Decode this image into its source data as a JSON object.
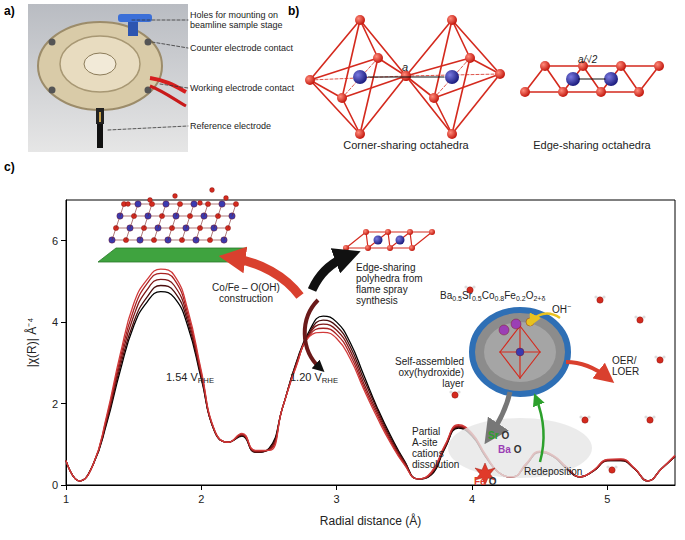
{
  "panels": {
    "a": {
      "label": "a)",
      "callouts": [
        [
          "Holes for mounting on",
          "beamline sample stage"
        ],
        [
          "Counter electrode contact"
        ],
        [
          "Working electrode contact"
        ],
        [
          "Reference electrode"
        ]
      ]
    },
    "b": {
      "label": "b)",
      "structures": [
        {
          "caption": "Corner-sharing octahedra",
          "distance": "a"
        },
        {
          "caption": "Edge-sharing octahedra",
          "distance": "a/√2"
        }
      ]
    },
    "c": {
      "label": "c)",
      "annotations": {
        "construction": [
          [
            "Co/Fe – O(OH)"
          ],
          [
            "construction"
          ]
        ],
        "potential_high": [
          [
            "1.54 V",
            {
              "sub": "RHE"
            }
          ]
        ],
        "potential_low": [
          [
            "1.20 V",
            {
              "sub": "RHE"
            }
          ]
        ],
        "synthesis": [
          [
            "Edge-sharing"
          ],
          [
            "polyhedra from"
          ],
          [
            "flame spray"
          ],
          [
            "synthesis"
          ]
        ],
        "formula": [
          [
            "Ba",
            {
              "sub": "0.5"
            },
            "Sr",
            {
              "sub": "0.5"
            },
            "Co",
            {
              "sub": "0.8"
            },
            "Fe",
            {
              "sub": "0.2"
            },
            "O",
            {
              "sub": "2+δ"
            }
          ]
        ],
        "hydroxide": [
          [
            "OH",
            {
              "sup": "−"
            }
          ]
        ],
        "layer": [
          [
            "Self-assembled"
          ],
          [
            "oxy(hydroxide)"
          ],
          [
            "layer"
          ]
        ],
        "reaction": [
          [
            "OER/"
          ],
          [
            "LOER"
          ]
        ],
        "dissolution": [
          [
            "Partial"
          ],
          [
            "A-site"
          ],
          [
            "cations"
          ],
          [
            "dissolution"
          ]
        ],
        "redeposition": [
          [
            "Redeposition"
          ]
        ]
      },
      "oxides": [
        {
          "cation": "Sr",
          "anion": "O",
          "color": "#2ca02c"
        },
        {
          "cation": "Ba",
          "anion": "O",
          "color": "#9b3fb5"
        },
        {
          "cation": "Fe",
          "anion": "O",
          "color": "#e03a2a"
        }
      ]
    }
  },
  "chart_data": {
    "type": "line",
    "x_label": "Radial distance (Å)",
    "y_label": "|χ(R)| Å⁻⁴",
    "xlim": [
      1,
      5.5
    ],
    "ylim": [
      0,
      7
    ],
    "xticks": [
      1,
      2,
      3,
      4,
      5
    ],
    "yticks": [
      0,
      2,
      4,
      6
    ],
    "grid": false,
    "x": [
      1.0,
      1.1,
      1.2,
      1.3,
      1.4,
      1.5,
      1.6,
      1.7,
      1.8,
      1.9,
      2.0,
      2.1,
      2.2,
      2.3,
      2.4,
      2.5,
      2.6,
      2.7,
      2.8,
      2.9,
      3.0,
      3.1,
      3.2,
      3.3,
      3.4,
      3.5,
      3.6,
      3.7,
      3.8,
      3.9,
      4.0,
      4.1,
      4.2,
      4.3,
      4.4,
      4.5,
      4.6,
      4.7,
      4.8,
      4.9,
      5.0,
      5.1,
      5.2,
      5.3,
      5.4,
      5.5
    ],
    "series": [
      {
        "color": "#000000",
        "values": [
          0.6,
          0.1,
          0.5,
          1.5,
          2.8,
          3.9,
          4.5,
          4.75,
          4.6,
          3.9,
          2.6,
          1.3,
          1.05,
          1.2,
          0.8,
          0.9,
          1.9,
          3.0,
          3.8,
          4.15,
          4.0,
          3.5,
          2.7,
          1.9,
          1.2,
          0.6,
          0.15,
          0.25,
          0.9,
          1.4,
          1.2,
          0.7,
          0.3,
          0.2,
          0.5,
          0.8,
          0.7,
          0.4,
          0.2,
          0.35,
          0.6,
          0.6,
          0.4,
          0.1,
          0.4,
          0.7
        ]
      },
      {
        "color": "#4a0d0d",
        "values": [
          0.6,
          0.1,
          0.5,
          1.55,
          2.9,
          4.0,
          4.62,
          4.9,
          4.75,
          4.0,
          2.65,
          1.3,
          1.05,
          1.22,
          0.8,
          0.88,
          1.9,
          2.98,
          3.75,
          4.05,
          3.9,
          3.4,
          2.6,
          1.85,
          1.15,
          0.58,
          0.15,
          0.27,
          0.92,
          1.42,
          1.22,
          0.7,
          0.3,
          0.2,
          0.5,
          0.8,
          0.7,
          0.4,
          0.2,
          0.35,
          0.6,
          0.6,
          0.4,
          0.1,
          0.4,
          0.7
        ]
      },
      {
        "color": "#7e1616",
        "values": [
          0.6,
          0.1,
          0.5,
          1.6,
          3.0,
          4.15,
          4.8,
          5.05,
          4.9,
          4.1,
          2.7,
          1.3,
          1.05,
          1.23,
          0.82,
          0.87,
          1.9,
          2.95,
          3.72,
          3.95,
          3.8,
          3.3,
          2.5,
          1.78,
          1.1,
          0.55,
          0.15,
          0.28,
          0.94,
          1.44,
          1.23,
          0.72,
          0.3,
          0.2,
          0.5,
          0.8,
          0.7,
          0.42,
          0.2,
          0.35,
          0.6,
          0.62,
          0.4,
          0.1,
          0.4,
          0.7
        ]
      },
      {
        "color": "#a82020",
        "values": [
          0.6,
          0.1,
          0.5,
          1.65,
          3.1,
          4.3,
          4.95,
          5.2,
          5.05,
          4.2,
          2.75,
          1.32,
          1.05,
          1.25,
          0.83,
          0.86,
          1.9,
          2.92,
          3.68,
          3.85,
          3.7,
          3.2,
          2.42,
          1.72,
          1.06,
          0.52,
          0.15,
          0.3,
          0.96,
          1.46,
          1.25,
          0.73,
          0.3,
          0.2,
          0.52,
          0.82,
          0.72,
          0.43,
          0.2,
          0.36,
          0.62,
          0.63,
          0.41,
          0.1,
          0.4,
          0.72
        ]
      },
      {
        "color": "#d13a3a",
        "values": [
          0.6,
          0.1,
          0.5,
          1.7,
          3.2,
          4.45,
          5.05,
          5.3,
          5.15,
          4.3,
          2.8,
          1.33,
          1.05,
          1.27,
          0.85,
          0.85,
          1.9,
          2.9,
          3.65,
          3.75,
          3.6,
          3.1,
          2.35,
          1.65,
          1.02,
          0.5,
          0.15,
          0.32,
          0.98,
          1.48,
          1.27,
          0.75,
          0.3,
          0.2,
          0.53,
          0.83,
          0.73,
          0.44,
          0.2,
          0.37,
          0.63,
          0.64,
          0.42,
          0.1,
          0.4,
          0.73
        ]
      }
    ]
  }
}
